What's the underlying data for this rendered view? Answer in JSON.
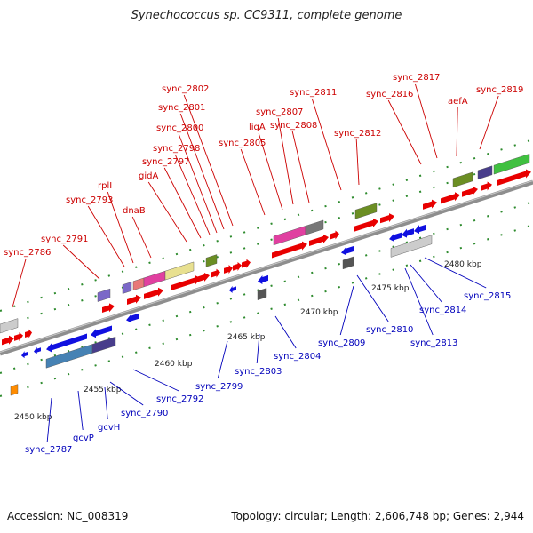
{
  "title": "Synechococcus sp. CC9311, complete genome",
  "footer": {
    "accession": "Accession: NC_008319",
    "summary": "Topology: circular; Length: 2,606,748 bp; Genes: 2,944"
  },
  "colors": {
    "top_label": "#cc0000",
    "bottom_label": "#0000bb",
    "backbone": "#888888",
    "tick": "#228b22"
  },
  "ticks": [
    "2450 kbp",
    "2455 kbp",
    "2460 kbp",
    "2465 kbp",
    "2470 kbp",
    "2475 kbp",
    "2480 kbp"
  ],
  "top_genes": [
    "sync_2786",
    "sync_2791",
    "sync_2793",
    "rplI",
    "dnaB",
    "gidA",
    "sync_2797",
    "sync_2798",
    "sync_2800",
    "sync_2801",
    "sync_2802",
    "sync_2805",
    "ligA",
    "sync_2807",
    "sync_2808",
    "sync_2811",
    "sync_2812",
    "sync_2816",
    "sync_2817",
    "aefA",
    "sync_2819"
  ],
  "bottom_genes": [
    "sync_2787",
    "gcvP",
    "gcvH",
    "sync_2790",
    "sync_2792",
    "sync_2799",
    "sync_2803",
    "sync_2804",
    "sync_2809",
    "sync_2810",
    "sync_2813",
    "sync_2814",
    "sync_2815"
  ]
}
